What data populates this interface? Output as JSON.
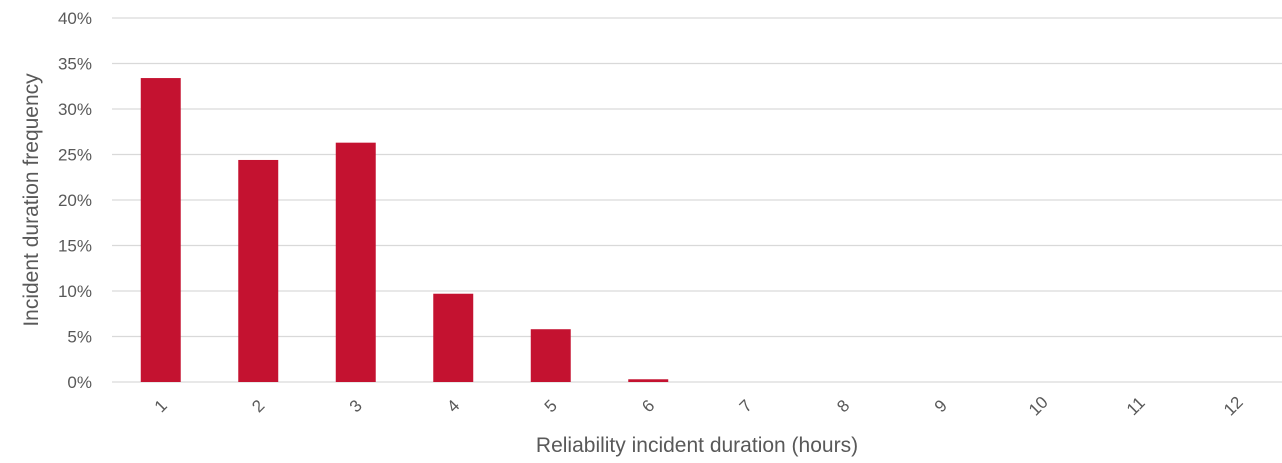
{
  "chart_data": {
    "type": "bar",
    "title": "",
    "xlabel": "Reliability incident duration (hours)",
    "ylabel": "Incident duration frequency",
    "categories": [
      "1",
      "2",
      "3",
      "4",
      "5",
      "6",
      "7",
      "8",
      "9",
      "10",
      "11",
      "12"
    ],
    "values": [
      33.4,
      24.4,
      26.3,
      9.7,
      5.8,
      0.3,
      0,
      0,
      0,
      0,
      0,
      0
    ],
    "ylim": [
      0,
      40
    ],
    "yticks": [
      "0%",
      "5%",
      "10%",
      "15%",
      "20%",
      "25%",
      "30%",
      "35%",
      "40%"
    ],
    "value_unit": "%",
    "grid": true,
    "legend": "none",
    "bar_color": "#c41230"
  }
}
